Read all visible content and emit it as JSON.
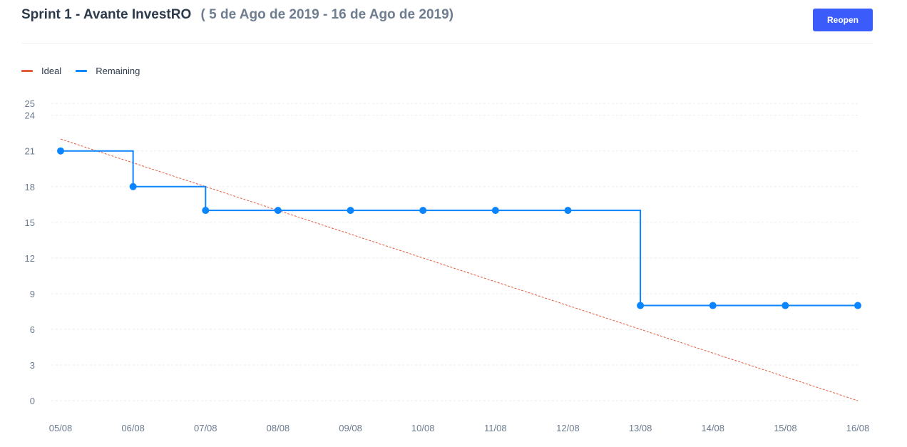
{
  "header": {
    "title": "Sprint 1 - Avante InvestRO",
    "date_range": "( 5 de Ago de 2019 - 16 de Ago de 2019)",
    "reopen_label": "Reopen"
  },
  "colors": {
    "ideal": "#e55a3b",
    "remaining": "#0a84ff",
    "button": "#3c5bfb",
    "grid": "#e8ebef"
  },
  "chart_data": {
    "type": "line",
    "title": "",
    "xlabel": "",
    "ylabel": "",
    "categories": [
      "05/08",
      "06/08",
      "07/08",
      "08/08",
      "09/08",
      "10/08",
      "11/08",
      "12/08",
      "13/08",
      "14/08",
      "15/08",
      "16/08"
    ],
    "yticks": [
      0,
      3,
      6,
      9,
      12,
      15,
      18,
      21,
      24,
      25
    ],
    "ylim": [
      0,
      25
    ],
    "grid": true,
    "legend_position": "top-left",
    "series": [
      {
        "name": "Ideal",
        "style": "dashed",
        "color": "#e55a3b",
        "values": [
          22,
          20,
          18,
          16,
          14,
          12,
          10,
          8,
          6,
          4,
          2,
          0
        ]
      },
      {
        "name": "Remaining",
        "style": "step",
        "color": "#0a84ff",
        "values": [
          21,
          18,
          16,
          16,
          16,
          16,
          16,
          16,
          8,
          8,
          8,
          8
        ]
      }
    ]
  }
}
